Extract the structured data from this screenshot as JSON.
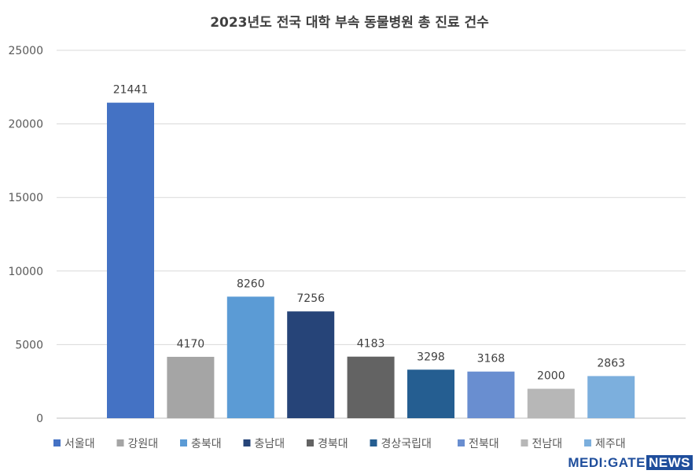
{
  "chart_data": {
    "type": "bar",
    "title": "2023년도 전국 대학 부속 동물병원 총 진료 건수",
    "categories": [
      "서울대",
      "강원대",
      "충북대",
      "충남대",
      "경북대",
      "경상국립대",
      "전북대",
      "전남대",
      "제주대"
    ],
    "values": [
      21441,
      4170,
      8260,
      7256,
      4183,
      3298,
      3168,
      2000,
      2863
    ],
    "colors": [
      "#4472C4",
      "#A5A5A5",
      "#5B9BD5",
      "#264478",
      "#636363",
      "#255E91",
      "#698ED0",
      "#B7B7B7",
      "#7CAFDD"
    ],
    "ylim": [
      0,
      25000
    ],
    "yticks": [
      "0",
      "5000",
      "10000",
      "15000",
      "20000",
      "25000"
    ],
    "grid": true,
    "legend": "bottom"
  },
  "watermark": {
    "prefix": "MEDI:GATE",
    "suffix": "NEWS"
  }
}
